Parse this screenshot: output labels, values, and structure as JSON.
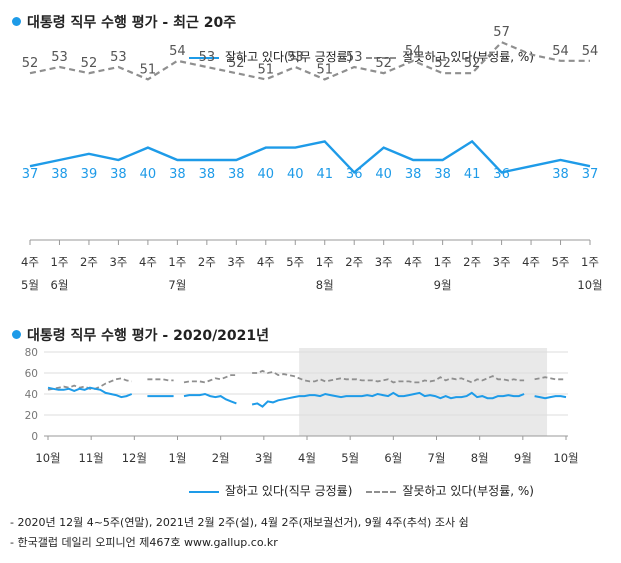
{
  "titles": {
    "recent": "대통령 직무 수행 평가 - 최근 20주",
    "longterm": "대통령 직무 수행 평가 - 2020/2021년"
  },
  "legend": {
    "positive": "잘하고 있다(직무 긍정률)",
    "negative": "잘못하고 있다(부정률, %)"
  },
  "colors": {
    "positive": "#1e9be8",
    "negative": "#8f8f8f",
    "shade": "#e9e9e9",
    "grid": "#dddddd"
  },
  "notes": [
    "- 2020년 12월 4~5주(연말), 2021년 2월 2주(설), 4월 2주(재보궐선거), 9월 4주(추석) 조사 쉼",
    "- 한국갤럽 데일리 오피니언 제467호 www.gallup.co.kr"
  ],
  "chart_data": [
    {
      "type": "line",
      "title": "대통령 직무 수행 평가 - 최근 20주",
      "categories": [
        "4주",
        "1주",
        "2주",
        "3주",
        "4주",
        "1주",
        "2주",
        "3주",
        "4주",
        "5주",
        "1주",
        "2주",
        "3주",
        "4주",
        "1주",
        "2주",
        "3주",
        "4주",
        "5주",
        "1주"
      ],
      "month_labels": [
        {
          "index": 0,
          "label": "5월"
        },
        {
          "index": 1,
          "label": "6월"
        },
        {
          "index": 5,
          "label": "7월"
        },
        {
          "index": 10,
          "label": "8월"
        },
        {
          "index": 14,
          "label": "9월"
        },
        {
          "index": 19,
          "label": "10월"
        }
      ],
      "series": [
        {
          "name": "잘하고 있다(직무 긍정률)",
          "values": [
            37,
            38,
            39,
            38,
            40,
            38,
            38,
            38,
            40,
            40,
            41,
            36,
            40,
            38,
            38,
            41,
            36,
            37,
            38,
            37
          ],
          "labels": [
            37,
            38,
            39,
            38,
            40,
            38,
            38,
            38,
            40,
            40,
            41,
            36,
            40,
            38,
            38,
            41,
            36,
            null,
            38,
            37
          ]
        },
        {
          "name": "잘못하고 있다(부정률, %)",
          "values": [
            52,
            53,
            52,
            53,
            51,
            54,
            53,
            52,
            51,
            53,
            51,
            53,
            52,
            54,
            52,
            52,
            57,
            55,
            54,
            54
          ],
          "labels": [
            52,
            53,
            52,
            53,
            51,
            54,
            53,
            52,
            51,
            53,
            51,
            53,
            52,
            54,
            52,
            52,
            57,
            null,
            54,
            54
          ]
        }
      ]
    },
    {
      "type": "line",
      "title": "대통령 직무 수행 평가 - 2020/2021년",
      "ylim": [
        0,
        80
      ],
      "yticks": [
        0,
        20,
        40,
        60,
        80
      ],
      "month_labels": [
        "10월",
        "11월",
        "12월",
        "1월",
        "2월",
        "3월",
        "4월",
        "5월",
        "6월",
        "7월",
        "8월",
        "9월",
        "10월"
      ],
      "shaded_range_weeks": [
        48,
        95
      ],
      "series": [
        {
          "name": "잘하고 있다(직무 긍정률)",
          "values": [
            46,
            45,
            44,
            44,
            45,
            43,
            45,
            44,
            46,
            45,
            44,
            41,
            40,
            39,
            37,
            38,
            40,
            null,
            null,
            38,
            38,
            38,
            38,
            38,
            38,
            null,
            38,
            39,
            39,
            39,
            40,
            38,
            37,
            38,
            35,
            33,
            31,
            null,
            null,
            30,
            31,
            28,
            33,
            32,
            34,
            35,
            36,
            37,
            38,
            38,
            39,
            39,
            38,
            40,
            39,
            38,
            37,
            38,
            38,
            38,
            38,
            39,
            38,
            40,
            39,
            38,
            41,
            38,
            38,
            39,
            40,
            41,
            38,
            39,
            38,
            36,
            38,
            36,
            37,
            37,
            38,
            41,
            37,
            38,
            36,
            36,
            38,
            38,
            39,
            38,
            38,
            40,
            null,
            38,
            37,
            36,
            37,
            38,
            38,
            37
          ]
        },
        {
          "name": "잘못하고 있다(부정률, %)",
          "values": [
            44,
            45,
            46,
            47,
            46,
            48,
            46,
            47,
            45,
            45,
            47,
            50,
            52,
            54,
            55,
            53,
            52,
            null,
            null,
            54,
            54,
            54,
            54,
            53,
            53,
            null,
            51,
            52,
            52,
            52,
            51,
            53,
            55,
            54,
            56,
            58,
            58,
            null,
            null,
            60,
            60,
            62,
            60,
            61,
            58,
            59,
            58,
            57,
            55,
            53,
            52,
            52,
            54,
            52,
            53,
            54,
            55,
            54,
            54,
            54,
            53,
            53,
            53,
            52,
            53,
            54,
            51,
            52,
            52,
            52,
            51,
            51,
            53,
            52,
            53,
            56,
            53,
            55,
            54,
            55,
            53,
            51,
            54,
            53,
            55,
            57,
            54,
            54,
            53,
            54,
            53,
            53,
            null,
            54,
            55,
            56,
            55,
            54,
            54,
            54
          ]
        }
      ]
    }
  ]
}
